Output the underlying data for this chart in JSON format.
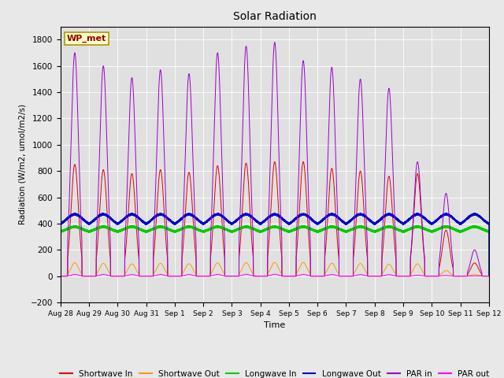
{
  "title": "Solar Radiation",
  "xlabel": "Time",
  "ylabel": "Radiation (W/m2, umol/m2/s)",
  "ylim": [
    -200,
    1900
  ],
  "yticks": [
    -200,
    0,
    200,
    400,
    600,
    800,
    1000,
    1200,
    1400,
    1600,
    1800
  ],
  "fig_bg": "#e8e8e8",
  "plot_bg": "#e0e0e0",
  "grid_color": "#ffffff",
  "colors": {
    "shortwave_in": "#dd0000",
    "shortwave_out": "#ff9900",
    "longwave_in": "#00cc00",
    "longwave_out": "#0000cc",
    "par_in": "#9900cc",
    "par_out": "#ff00ee"
  },
  "legend_labels": [
    "Shortwave In",
    "Shortwave Out",
    "Longwave In",
    "Longwave Out",
    "PAR in",
    "PAR out"
  ],
  "station_label": "WP_met",
  "num_days": 15,
  "sw_in_peaks": [
    850,
    810,
    780,
    810,
    790,
    840,
    860,
    870,
    870,
    820,
    800,
    760,
    780,
    350,
    100
  ],
  "par_in_peaks": [
    1700,
    1600,
    1510,
    1570,
    1540,
    1700,
    1750,
    1780,
    1640,
    1590,
    1500,
    1430,
    870,
    630,
    200
  ],
  "x_tick_labels": [
    "Aug 28",
    "Aug 29",
    "Aug 30",
    "Aug 31",
    "Sep 1",
    "Sep 2",
    "Sep 3",
    "Sep 4",
    "Sep 5",
    "Sep 6",
    "Sep 7",
    "Sep 8",
    "Sep 9",
    "Sep 10",
    "Sep 11",
    "Sep 12"
  ]
}
